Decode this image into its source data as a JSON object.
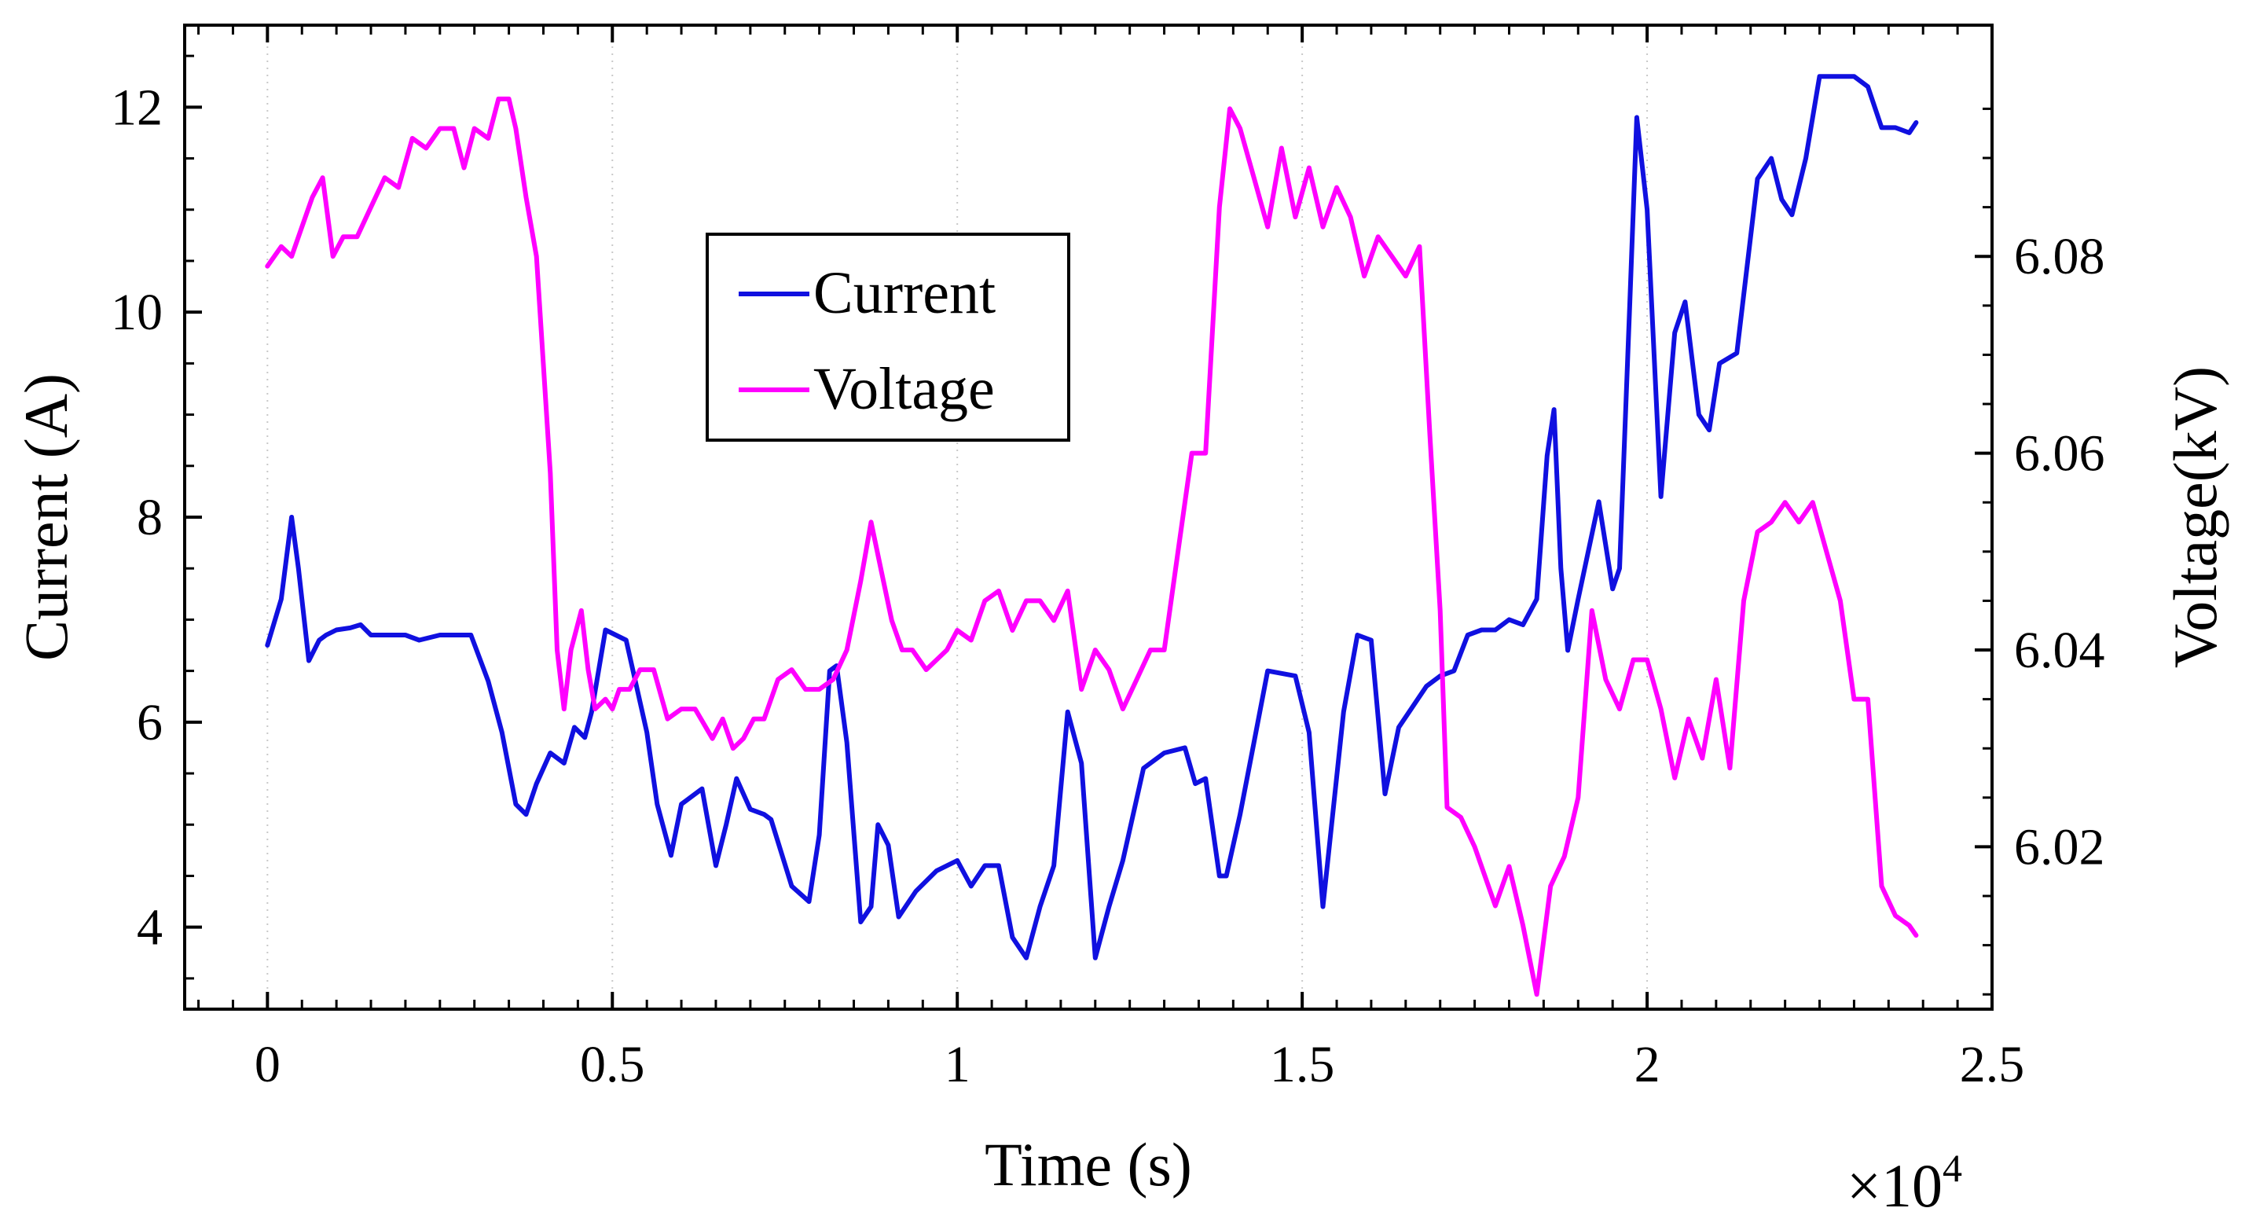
{
  "chart_data": {
    "type": "line",
    "title": "",
    "xlabel": "Time (s)",
    "ylabel_left": "Current (A)",
    "ylabel_right": "Voltage(kV)",
    "x_multiplier": "×10",
    "x_multiplier_exp": "4",
    "xlim": [
      -0.12,
      2.5
    ],
    "ylim_left": [
      3.2,
      12.8
    ],
    "ylim_right": [
      6.0035,
      6.1035
    ],
    "x_ticks": [
      0,
      0.5,
      1,
      1.5,
      2,
      2.5
    ],
    "x_tick_labels": [
      "0",
      "0.5",
      "1",
      "1.5",
      "2",
      "2.5"
    ],
    "y_left_ticks": [
      4,
      6,
      8,
      10,
      12
    ],
    "y_left_tick_labels": [
      "4",
      "6",
      "8",
      "10",
      "12"
    ],
    "y_right_ticks": [
      6.02,
      6.04,
      6.06,
      6.08
    ],
    "y_right_tick_labels": [
      "6.02",
      "6.04",
      "6.06",
      "6.08"
    ],
    "grid": true,
    "legend": {
      "position": "upper-center",
      "entries": [
        "Current",
        "Voltage"
      ]
    },
    "series": [
      {
        "name": "Current",
        "axis": "left",
        "color": "#1010e0",
        "x": [
          0,
          0.02,
          0.035,
          0.045,
          0.06,
          0.075,
          0.085,
          0.1,
          0.12,
          0.135,
          0.15,
          0.17,
          0.2,
          0.22,
          0.25,
          0.28,
          0.295,
          0.32,
          0.34,
          0.36,
          0.375,
          0.39,
          0.41,
          0.43,
          0.445,
          0.46,
          0.47,
          0.49,
          0.52,
          0.55,
          0.565,
          0.585,
          0.6,
          0.63,
          0.65,
          0.665,
          0.68,
          0.7,
          0.72,
          0.73,
          0.76,
          0.785,
          0.8,
          0.815,
          0.825,
          0.84,
          0.86,
          0.875,
          0.885,
          0.9,
          0.915,
          0.94,
          0.97,
          1.0,
          1.02,
          1.04,
          1.06,
          1.08,
          1.1,
          1.12,
          1.14,
          1.16,
          1.18,
          1.2,
          1.22,
          1.24,
          1.27,
          1.3,
          1.33,
          1.345,
          1.36,
          1.38,
          1.39,
          1.41,
          1.43,
          1.45,
          1.49,
          1.51,
          1.53,
          1.56,
          1.58,
          1.6,
          1.62,
          1.64,
          1.66,
          1.68,
          1.7,
          1.72,
          1.74,
          1.76,
          1.78,
          1.8,
          1.82,
          1.84,
          1.855,
          1.865,
          1.875,
          1.885,
          1.9,
          1.93,
          1.95,
          1.96,
          1.975,
          1.985,
          2.0,
          2.02,
          2.04,
          2.055,
          2.075,
          2.09,
          2.105,
          2.13,
          2.16,
          2.18,
          2.195,
          2.21,
          2.23,
          2.25,
          2.28,
          2.3,
          2.32,
          2.34,
          2.36,
          2.38,
          2.39
        ],
        "values": [
          6.75,
          7.2,
          8.0,
          7.5,
          6.6,
          6.8,
          6.85,
          6.9,
          6.92,
          6.95,
          6.85,
          6.85,
          6.85,
          6.8,
          6.85,
          6.85,
          6.85,
          6.4,
          5.9,
          5.2,
          5.1,
          5.4,
          5.7,
          5.6,
          5.95,
          5.85,
          6.1,
          6.9,
          6.8,
          5.9,
          5.2,
          4.7,
          5.2,
          5.35,
          4.6,
          5.0,
          5.45,
          5.15,
          5.1,
          5.05,
          4.4,
          4.25,
          4.9,
          6.5,
          6.55,
          5.8,
          4.05,
          4.2,
          5.0,
          4.8,
          4.1,
          4.35,
          4.55,
          4.65,
          4.4,
          4.6,
          4.6,
          3.9,
          3.7,
          4.2,
          4.6,
          6.1,
          5.6,
          3.7,
          4.2,
          4.65,
          5.55,
          5.7,
          5.75,
          5.4,
          5.45,
          4.5,
          4.5,
          5.1,
          5.8,
          6.5,
          6.45,
          5.9,
          4.2,
          6.1,
          6.85,
          6.8,
          5.3,
          5.95,
          6.15,
          6.35,
          6.45,
          6.5,
          6.85,
          6.9,
          6.9,
          7.0,
          6.95,
          7.2,
          8.6,
          9.05,
          7.5,
          6.7,
          7.2,
          8.15,
          7.3,
          7.5,
          10.1,
          11.9,
          11.0,
          8.2,
          9.8,
          10.1,
          9.0,
          8.85,
          9.5,
          9.6,
          11.3,
          11.5,
          11.1,
          10.95,
          11.5,
          12.3,
          12.3,
          12.3,
          12.2,
          11.8,
          11.8,
          11.75,
          11.85
        ]
      },
      {
        "name": "Voltage",
        "axis": "right",
        "color": "#ff00ff",
        "x": [
          0,
          0.02,
          0.035,
          0.05,
          0.065,
          0.08,
          0.095,
          0.11,
          0.13,
          0.15,
          0.17,
          0.19,
          0.21,
          0.23,
          0.25,
          0.27,
          0.285,
          0.3,
          0.32,
          0.335,
          0.35,
          0.36,
          0.375,
          0.39,
          0.41,
          0.42,
          0.43,
          0.44,
          0.455,
          0.465,
          0.475,
          0.49,
          0.5,
          0.51,
          0.525,
          0.54,
          0.56,
          0.58,
          0.6,
          0.62,
          0.645,
          0.66,
          0.675,
          0.69,
          0.705,
          0.72,
          0.74,
          0.76,
          0.78,
          0.8,
          0.82,
          0.84,
          0.86,
          0.875,
          0.89,
          0.905,
          0.92,
          0.935,
          0.955,
          0.97,
          0.985,
          1.0,
          1.02,
          1.04,
          1.06,
          1.08,
          1.1,
          1.12,
          1.14,
          1.16,
          1.18,
          1.2,
          1.22,
          1.24,
          1.26,
          1.28,
          1.3,
          1.32,
          1.34,
          1.36,
          1.38,
          1.395,
          1.41,
          1.43,
          1.45,
          1.47,
          1.49,
          1.51,
          1.53,
          1.55,
          1.57,
          1.59,
          1.61,
          1.63,
          1.65,
          1.67,
          1.685,
          1.7,
          1.71,
          1.73,
          1.75,
          1.78,
          1.8,
          1.82,
          1.84,
          1.86,
          1.88,
          1.9,
          1.92,
          1.94,
          1.96,
          1.98,
          2.0,
          2.02,
          2.04,
          2.06,
          2.08,
          2.1,
          2.12,
          2.14,
          2.16,
          2.18,
          2.2,
          2.22,
          2.24,
          2.26,
          2.28,
          2.3,
          2.32,
          2.34,
          2.36,
          2.38,
          2.39
        ],
        "values": [
          6.079,
          6.081,
          6.08,
          6.083,
          6.086,
          6.088,
          6.08,
          6.082,
          6.082,
          6.085,
          6.088,
          6.087,
          6.092,
          6.091,
          6.093,
          6.093,
          6.089,
          6.093,
          6.092,
          6.096,
          6.096,
          6.093,
          6.086,
          6.08,
          6.058,
          6.04,
          6.034,
          6.04,
          6.044,
          6.038,
          6.034,
          6.035,
          6.034,
          6.036,
          6.036,
          6.038,
          6.038,
          6.033,
          6.034,
          6.034,
          6.031,
          6.033,
          6.03,
          6.031,
          6.033,
          6.033,
          6.037,
          6.038,
          6.036,
          6.036,
          6.037,
          6.04,
          6.047,
          6.053,
          6.048,
          6.043,
          6.04,
          6.04,
          6.038,
          6.039,
          6.04,
          6.042,
          6.041,
          6.045,
          6.046,
          6.042,
          6.045,
          6.045,
          6.043,
          6.046,
          6.036,
          6.04,
          6.038,
          6.034,
          6.037,
          6.04,
          6.04,
          6.05,
          6.06,
          6.06,
          6.085,
          6.095,
          6.093,
          6.088,
          6.083,
          6.091,
          6.084,
          6.089,
          6.083,
          6.087,
          6.084,
          6.078,
          6.082,
          6.08,
          6.078,
          6.081,
          6.062,
          6.044,
          6.024,
          6.023,
          6.02,
          6.014,
          6.018,
          6.012,
          6.005,
          6.016,
          6.019,
          6.025,
          6.044,
          6.037,
          6.034,
          6.039,
          6.039,
          6.034,
          6.027,
          6.033,
          6.029,
          6.037,
          6.028,
          6.045,
          6.052,
          6.053,
          6.055,
          6.053,
          6.055,
          6.05,
          6.045,
          6.035,
          6.035,
          6.016,
          6.013,
          6.012,
          6.011
        ]
      }
    ]
  }
}
